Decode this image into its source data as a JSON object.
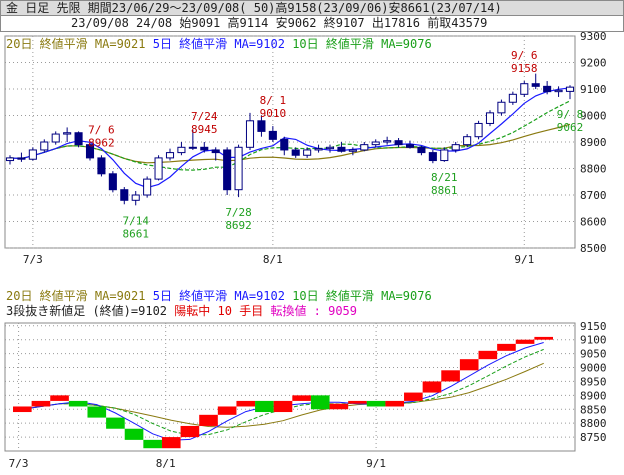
{
  "header": {
    "line1": "金 日足 先限 期間23/06/29～23/09/08( 50)高9158(23/09/06)安8661(23/07/14)",
    "line2": "23/09/08 24/08 始9091 高9114 安9062 終9107 出17816 前取43579"
  },
  "top_panel": {
    "legend": {
      "ma20": "20日 終値平滑 MA=9021",
      "ma5": "5日 終値平滑 MA=9102",
      "ma10": "10日 終値平滑 MA=9076"
    }
  },
  "bottom_panel": {
    "legend": {
      "ma20": "20日 終値平滑 MA=9021",
      "ma5": "5日 終値平滑 MA=9102",
      "ma10": "10日 終値平滑 MA=9076"
    },
    "info": {
      "main": "3段抜き新値足 (終値)=9102",
      "trend": "陽転中",
      "count": "10 手目",
      "turn": "転換値 : 9059"
    }
  },
  "colors": {
    "ma5": "#1a1aff",
    "ma10": "#1aa01a",
    "ma20": "#8a7a10",
    "up": "#ff0000",
    "down": "#00cc00",
    "high_label": "#c00000",
    "low_label": "#20a020"
  },
  "chart_data": [
    {
      "type": "candlestick",
      "x_ticks": [
        "7/3",
        "8/1",
        "9/1"
      ],
      "x_tick_index": [
        2,
        23,
        45
      ],
      "ylim": [
        8500,
        9300
      ],
      "y_ticks": [
        8500,
        8600,
        8700,
        8800,
        8900,
        9000,
        9100,
        9200,
        9300
      ],
      "candles": [
        [
          8830,
          8850,
          8815,
          8840
        ],
        [
          8840,
          8860,
          8825,
          8835
        ],
        [
          8835,
          8880,
          8830,
          8870
        ],
        [
          8870,
          8910,
          8860,
          8900
        ],
        [
          8900,
          8940,
          8890,
          8930
        ],
        [
          8930,
          8955,
          8900,
          8935
        ],
        [
          8935,
          8940,
          8880,
          8890
        ],
        [
          8890,
          8895,
          8830,
          8840
        ],
        [
          8840,
          8850,
          8770,
          8780
        ],
        [
          8780,
          8790,
          8710,
          8720
        ],
        [
          8720,
          8730,
          8665,
          8680
        ],
        [
          8680,
          8715,
          8661,
          8700
        ],
        [
          8700,
          8770,
          8690,
          8760
        ],
        [
          8760,
          8850,
          8755,
          8840
        ],
        [
          8840,
          8875,
          8830,
          8860
        ],
        [
          8860,
          8900,
          8850,
          8880
        ],
        [
          8880,
          8945,
          8870,
          8880
        ],
        [
          8880,
          8900,
          8860,
          8870
        ],
        [
          8870,
          8880,
          8830,
          8860
        ],
        [
          8870,
          8880,
          8700,
          8720
        ],
        [
          8720,
          8890,
          8692,
          8880
        ],
        [
          8880,
          9010,
          8870,
          8980
        ],
        [
          8980,
          9000,
          8920,
          8940
        ],
        [
          8940,
          8960,
          8900,
          8910
        ],
        [
          8910,
          8920,
          8850,
          8870
        ],
        [
          8870,
          8880,
          8840,
          8850
        ],
        [
          8850,
          8880,
          8840,
          8870
        ],
        [
          8870,
          8890,
          8860,
          8875
        ],
        [
          8875,
          8890,
          8860,
          8880
        ],
        [
          8880,
          8900,
          8860,
          8865
        ],
        [
          8865,
          8880,
          8850,
          8870
        ],
        [
          8870,
          8900,
          8865,
          8890
        ],
        [
          8890,
          8910,
          8880,
          8900
        ],
        [
          8900,
          8920,
          8890,
          8905
        ],
        [
          8905,
          8915,
          8880,
          8890
        ],
        [
          8890,
          8905,
          8875,
          8880
        ],
        [
          8880,
          8885,
          8850,
          8860
        ],
        [
          8860,
          8870,
          8820,
          8830
        ],
        [
          8830,
          8880,
          8825,
          8870
        ],
        [
          8870,
          8900,
          8860,
          8890
        ],
        [
          8890,
          8930,
          8880,
          8920
        ],
        [
          8920,
          8980,
          8910,
          8970
        ],
        [
          8970,
          9020,
          8960,
          9010
        ],
        [
          9010,
          9060,
          9000,
          9050
        ],
        [
          9050,
          9090,
          9040,
          9080
        ],
        [
          9080,
          9130,
          9070,
          9120
        ],
        [
          9120,
          9158,
          9100,
          9110
        ],
        [
          9110,
          9130,
          9080,
          9090
        ],
        [
          9090,
          9110,
          9070,
          9095
        ],
        [
          9091,
          9114,
          9062,
          9107
        ]
      ],
      "annotations": [
        {
          "kind": "high",
          "index": 8,
          "date": "7/ 6",
          "value": 8962
        },
        {
          "kind": "high",
          "index": 17,
          "date": "7/24",
          "value": 8945
        },
        {
          "kind": "high",
          "index": 23,
          "date": "8/ 1",
          "value": 9010
        },
        {
          "kind": "high",
          "index": 45,
          "date": "9/ 6",
          "value": 9158
        },
        {
          "kind": "low",
          "index": 11,
          "date": "7/14",
          "value": 8661
        },
        {
          "kind": "low",
          "index": 20,
          "date": "7/28",
          "value": 8692
        },
        {
          "kind": "low",
          "index": 38,
          "date": "8/21",
          "value": 8861
        },
        {
          "kind": "low",
          "index": 49,
          "date": "9/ 8",
          "value": 9062
        }
      ]
    },
    {
      "type": "three-line-break",
      "x_ticks": [
        "7/3",
        "8/1",
        "9/1"
      ],
      "ylim": [
        8700,
        9160
      ],
      "y_ticks": [
        8750,
        8800,
        8850,
        8900,
        8950,
        9000,
        9050,
        9100,
        9150
      ],
      "bricks": [
        [
          "up",
          8840,
          8860
        ],
        [
          "up",
          8860,
          8880
        ],
        [
          "up",
          8880,
          8900
        ],
        [
          "down",
          8880,
          8860
        ],
        [
          "down",
          8860,
          8820
        ],
        [
          "down",
          8820,
          8780
        ],
        [
          "down",
          8780,
          8740
        ],
        [
          "down",
          8740,
          8710
        ],
        [
          "up",
          8710,
          8750
        ],
        [
          "up",
          8750,
          8790
        ],
        [
          "up",
          8790,
          8830
        ],
        [
          "up",
          8830,
          8860
        ],
        [
          "up",
          8860,
          8880
        ],
        [
          "down",
          8880,
          8840
        ],
        [
          "up",
          8840,
          8880
        ],
        [
          "up",
          8880,
          8900
        ],
        [
          "down",
          8900,
          8850
        ],
        [
          "up",
          8850,
          8870
        ],
        [
          "up",
          8870,
          8880
        ],
        [
          "down",
          8880,
          8860
        ],
        [
          "up",
          8860,
          8880
        ],
        [
          "up",
          8880,
          8910
        ],
        [
          "up",
          8910,
          8950
        ],
        [
          "up",
          8950,
          8990
        ],
        [
          "up",
          8990,
          9030
        ],
        [
          "up",
          9030,
          9060
        ],
        [
          "up",
          9060,
          9085
        ],
        [
          "up",
          9085,
          9100
        ],
        [
          "up",
          9100,
          9110
        ]
      ]
    }
  ]
}
